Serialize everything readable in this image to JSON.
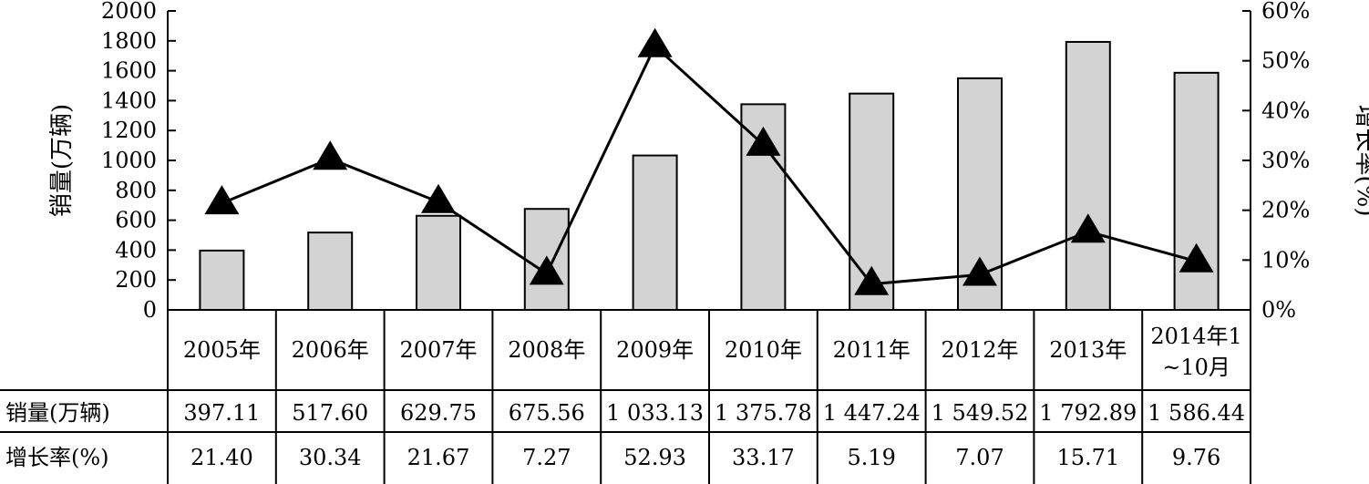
{
  "chart_data": {
    "type": "bar",
    "categories": [
      "2005年",
      "2006年",
      "2007年",
      "2008年",
      "2009年",
      "2010年",
      "2011年",
      "2012年",
      "2013年",
      "2014年1~10月"
    ],
    "category_lines": [
      [
        "2005年"
      ],
      [
        "2006年"
      ],
      [
        "2007年"
      ],
      [
        "2008年"
      ],
      [
        "2009年"
      ],
      [
        "2010年"
      ],
      [
        "2011年"
      ],
      [
        "2012年"
      ],
      [
        "2013年"
      ],
      [
        "2014年1",
        "~10月"
      ]
    ],
    "series": [
      {
        "name": "销量(万辆)",
        "chart_type": "bar",
        "axis": "left",
        "values": [
          397.11,
          517.6,
          629.75,
          675.56,
          1033.13,
          1375.78,
          1447.24,
          1549.52,
          1792.89,
          1586.44
        ],
        "display_values": [
          "397.11",
          "517.60",
          "629.75",
          "675.56",
          "1 033.13",
          "1 375.78",
          "1 447.24",
          "1 549.52",
          "1 792.89",
          "1 586.44"
        ],
        "color": "#d3d3d3"
      },
      {
        "name": "增长率(%)",
        "chart_type": "line",
        "marker": "triangle",
        "axis": "right",
        "values": [
          21.4,
          30.34,
          21.67,
          7.27,
          52.93,
          33.17,
          5.19,
          7.07,
          15.71,
          9.76
        ],
        "display_values": [
          "21.40",
          "30.34",
          "21.67",
          "7.27",
          "52.93",
          "33.17",
          "5.19",
          "7.07",
          "15.71",
          "9.76"
        ],
        "color": "#000000"
      }
    ],
    "ylabel": "销量(万辆)",
    "ylabel_right": "增长率(%)",
    "ylim": [
      0,
      2000
    ],
    "ylim_right": [
      0,
      60
    ],
    "y_ticks": [
      "0",
      "200",
      "400",
      "600",
      "800",
      "1000",
      "1200",
      "1400",
      "1600",
      "1800",
      "2000"
    ],
    "y_ticks_right": [
      "0%",
      "10%",
      "20%",
      "30%",
      "40%",
      "50%",
      "60%"
    ],
    "grid": false,
    "data_table": true,
    "row_headers": [
      "销量(万辆)",
      "增长率(%)"
    ]
  }
}
